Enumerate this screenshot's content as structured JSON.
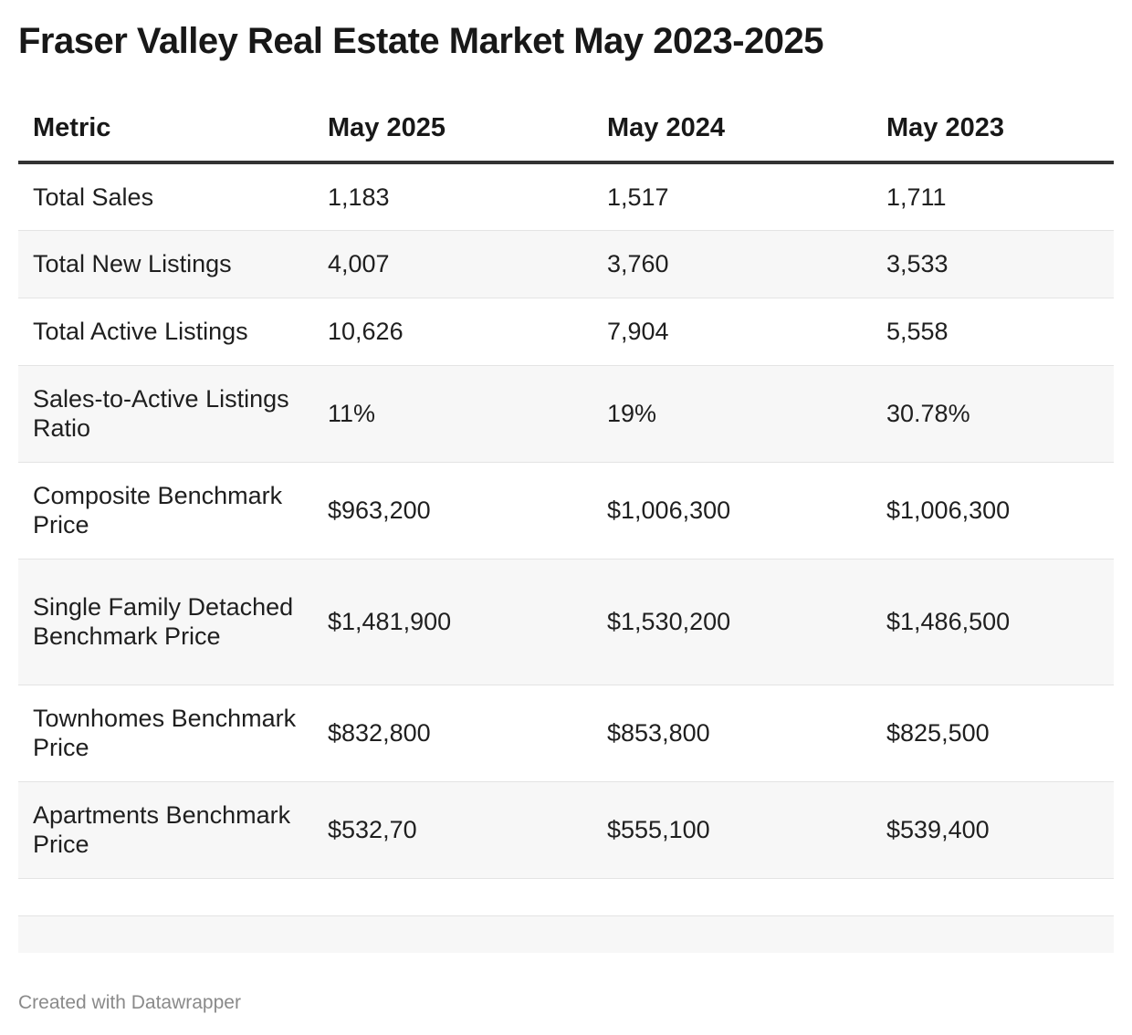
{
  "title": "Fraser Valley Real Estate Market May 2023-2025",
  "footer": "Created with Datawrapper",
  "chart_data": {
    "type": "table",
    "title": "Fraser Valley Real Estate Market May 2023-2025",
    "columns": [
      "Metric",
      "May 2025",
      "May 2024",
      "May 2023"
    ],
    "rows": [
      [
        "Total Sales",
        "1,183",
        "1,517",
        "1,711"
      ],
      [
        "Total New Listings",
        "4,007",
        "3,760",
        "3,533"
      ],
      [
        "Total Active Listings",
        "10,626",
        "7,904",
        "5,558"
      ],
      [
        "Sales-to-Active Listings Ratio",
        "11%",
        "19%",
        "30.78%"
      ],
      [
        "Composite Benchmark Price",
        "$963,200",
        "$1,006,300",
        "$1,006,300"
      ],
      [
        "Single Family Detached Benchmark Price",
        "$1,481,900",
        "$1,530,200",
        "$1,486,500"
      ],
      [
        "Townhomes Benchmark Price",
        "$832,800",
        "$853,800",
        "$825,500"
      ],
      [
        "Apartments Benchmark Price",
        "$532,70",
        "$555,100",
        "$539,400"
      ]
    ]
  },
  "layout": {
    "row_heights": [
      74,
      74,
      74,
      106,
      106,
      138,
      106,
      106
    ],
    "empty_rows": 2
  },
  "colors": {
    "text": "#181818",
    "header_rule": "#333333",
    "row_divider": "#e4e4e4",
    "stripe": "#f7f7f7",
    "footer_text": "#8a8a8a"
  }
}
